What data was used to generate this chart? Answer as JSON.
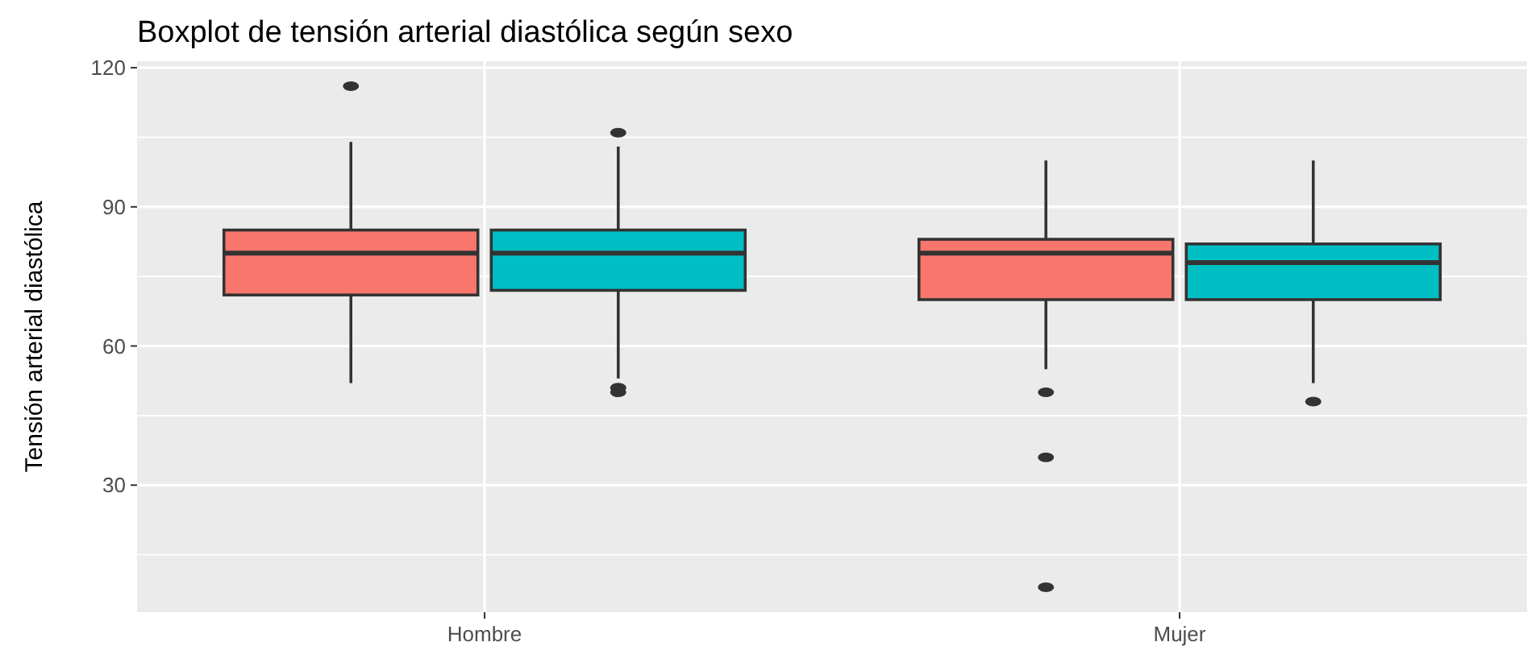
{
  "chart_data": {
    "type": "box",
    "title": "Boxplot de tensión arterial diastólica según sexo",
    "ylabel": "Tensión arterial diastólica",
    "categories": [
      "Hombre",
      "Mujer"
    ],
    "ylim": [
      2.6,
      121.4
    ],
    "yticks": [
      30,
      60,
      90,
      120
    ],
    "grid": true,
    "series": [
      {
        "color": "#f8766d",
        "boxes": [
          {
            "low": 52,
            "q1": 71,
            "median": 80,
            "q3": 85,
            "high": 104,
            "outliers": [
              116
            ]
          },
          {
            "low": 55,
            "q1": 70,
            "median": 80,
            "q3": 83,
            "high": 100,
            "outliers": [
              50,
              36,
              8
            ]
          }
        ]
      },
      {
        "color": "#00bfc4",
        "boxes": [
          {
            "low": 53,
            "q1": 72,
            "median": 80,
            "q3": 85,
            "high": 103,
            "outliers": [
              106,
              51,
              50
            ]
          },
          {
            "low": 52,
            "q1": 70,
            "median": 78,
            "q3": 82,
            "high": 100,
            "outliers": [
              48
            ]
          }
        ]
      }
    ]
  }
}
